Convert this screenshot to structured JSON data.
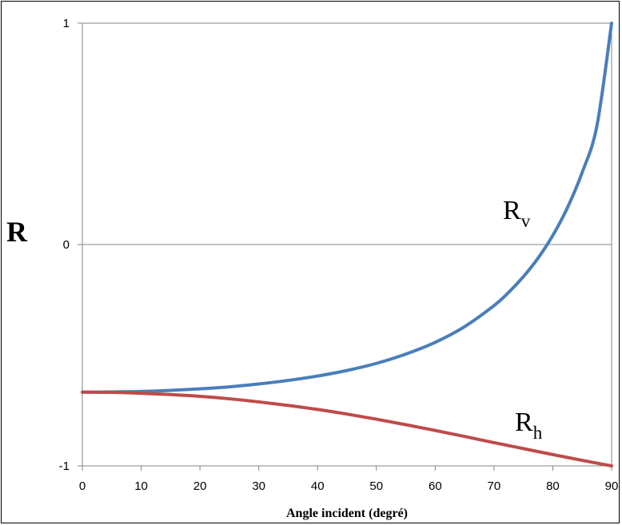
{
  "chart_data": {
    "type": "line",
    "xlabel": "Angle incident (degré)",
    "ylabel": "R",
    "xlim": [
      0,
      90
    ],
    "ylim": [
      -1,
      1
    ],
    "x_ticks": [
      0,
      10,
      20,
      30,
      40,
      50,
      60,
      70,
      80,
      90
    ],
    "y_ticks": [
      -1,
      0,
      1
    ],
    "x_tick_labels": [
      "0",
      "10",
      "20",
      "30",
      "40",
      "50",
      "60",
      "70",
      "80",
      "90"
    ],
    "y_tick_labels": [
      "-1",
      "0",
      "1"
    ],
    "grid": false,
    "zero_line": true,
    "series": [
      {
        "name": "R",
        "subscript": "v",
        "color": "#4A7EBB",
        "x": [
          0,
          5,
          10,
          15,
          20,
          25,
          30,
          35,
          40,
          45,
          50,
          55,
          60,
          65,
          70,
          72.5,
          75,
          77.5,
          80,
          82.5,
          85,
          87.5,
          90
        ],
        "y": [
          -0.667,
          -0.666,
          -0.664,
          -0.659,
          -0.652,
          -0.643,
          -0.63,
          -0.614,
          -0.594,
          -0.569,
          -0.537,
          -0.495,
          -0.442,
          -0.371,
          -0.276,
          -0.216,
          -0.145,
          -0.061,
          0.041,
          0.167,
          0.326,
          0.536,
          1.0
        ]
      },
      {
        "name": "R",
        "subscript": "h",
        "color": "#BE4B48",
        "x": [
          0,
          5,
          10,
          15,
          20,
          25,
          30,
          35,
          40,
          45,
          50,
          55,
          60,
          65,
          70,
          75,
          80,
          85,
          90
        ],
        "y": [
          -0.667,
          -0.668,
          -0.672,
          -0.678,
          -0.686,
          -0.697,
          -0.711,
          -0.727,
          -0.745,
          -0.766,
          -0.789,
          -0.814,
          -0.84,
          -0.867,
          -0.895,
          -0.922,
          -0.949,
          -0.975,
          -1.0
        ]
      }
    ]
  }
}
